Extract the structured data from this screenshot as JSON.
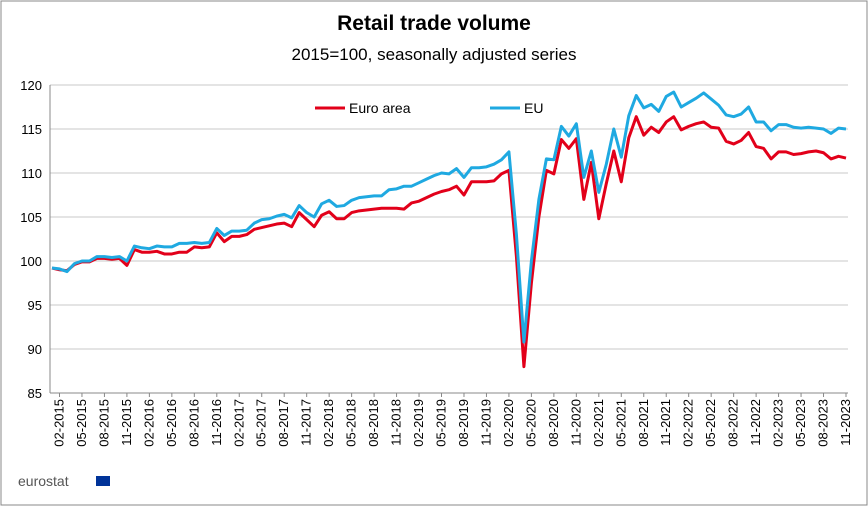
{
  "chart_data": {
    "type": "line",
    "title": "Retail trade volume",
    "subtitle": "2015=100, seasonally adjusted series",
    "source": "eurostat",
    "categories": [
      null,
      "02-2015",
      null,
      null,
      "05-2015",
      null,
      null,
      "08-2015",
      null,
      null,
      "11-2015",
      null,
      null,
      "02-2016",
      null,
      null,
      "05-2016",
      null,
      null,
      "08-2016",
      null,
      null,
      "11-2016",
      null,
      null,
      "02-2017",
      null,
      null,
      "05-2017",
      null,
      null,
      "08-2017",
      null,
      null,
      "11-2017",
      null,
      null,
      "02-2018",
      null,
      null,
      "05-2018",
      null,
      null,
      "08-2018",
      null,
      null,
      "11-2018",
      null,
      null,
      "02-2019",
      null,
      null,
      "05-2019",
      null,
      null,
      "08-2019",
      null,
      null,
      "11-2019",
      null,
      null,
      "02-2020",
      null,
      null,
      "05-2020",
      null,
      null,
      "08-2020",
      null,
      null,
      "11-2020",
      null,
      null,
      "02-2021",
      null,
      null,
      "05-2021",
      null,
      null,
      "08-2021",
      null,
      null,
      "11-2021",
      null,
      null,
      "02-2022",
      null,
      null,
      "05-2022",
      null,
      null,
      "08-2022",
      null,
      null,
      "11-2022",
      null,
      null,
      "02-2023",
      null,
      null,
      "05-2023",
      null,
      null,
      "08-2023",
      null,
      null,
      "11-2023"
    ],
    "series": [
      {
        "name": "Euro area",
        "color": "#e2001a",
        "values": [
          99.2,
          99.0,
          98.9,
          99.6,
          99.9,
          99.9,
          100.3,
          100.3,
          100.2,
          100.3,
          99.5,
          101.3,
          101.0,
          101.0,
          101.1,
          100.8,
          100.8,
          101.0,
          101.0,
          101.6,
          101.5,
          101.6,
          103.2,
          102.2,
          102.8,
          102.8,
          103.0,
          103.6,
          103.8,
          104.0,
          104.2,
          104.3,
          103.9,
          105.5,
          104.7,
          103.9,
          105.2,
          105.6,
          104.8,
          104.8,
          105.5,
          105.7,
          105.8,
          105.9,
          106.0,
          106.0,
          106.0,
          105.9,
          106.6,
          106.8,
          107.2,
          107.6,
          107.9,
          108.1,
          108.5,
          107.5,
          109.0,
          109.0,
          109.0,
          109.1,
          109.9,
          110.3,
          100.5,
          88.0,
          97.5,
          105.0,
          110.3,
          109.9,
          113.8,
          112.8,
          113.9,
          107.0,
          111.2,
          104.8,
          108.8,
          112.5,
          109.0,
          114.0,
          116.4,
          114.3,
          115.2,
          114.6,
          115.8,
          116.4,
          114.9,
          115.3,
          115.6,
          115.8,
          115.2,
          115.1,
          113.6,
          113.3,
          113.7,
          114.6,
          113.0,
          112.8,
          111.6,
          112.4,
          112.4,
          112.1,
          112.2,
          112.4,
          112.5,
          112.3,
          111.6,
          111.9,
          111.7
        ]
      },
      {
        "name": "EU",
        "color": "#1fa9e1",
        "values": [
          99.2,
          99.1,
          98.8,
          99.7,
          100.0,
          100.0,
          100.5,
          100.5,
          100.4,
          100.5,
          100.0,
          101.7,
          101.5,
          101.4,
          101.7,
          101.6,
          101.6,
          102.0,
          102.0,
          102.1,
          102.0,
          102.1,
          103.7,
          102.9,
          103.4,
          103.4,
          103.5,
          104.3,
          104.7,
          104.8,
          105.1,
          105.3,
          104.9,
          106.3,
          105.5,
          105.0,
          106.5,
          106.9,
          106.2,
          106.3,
          106.9,
          107.2,
          107.3,
          107.4,
          107.4,
          108.1,
          108.2,
          108.5,
          108.5,
          108.9,
          109.3,
          109.7,
          110.0,
          109.9,
          110.5,
          109.5,
          110.6,
          110.6,
          110.7,
          111.0,
          111.5,
          112.4,
          103.0,
          90.8,
          100.0,
          107.0,
          111.6,
          111.5,
          115.3,
          114.2,
          115.6,
          109.5,
          112.5,
          107.8,
          111.0,
          115.0,
          111.8,
          116.5,
          118.8,
          117.4,
          117.8,
          117.0,
          118.7,
          119.2,
          117.5,
          118.0,
          118.5,
          119.1,
          118.4,
          117.7,
          116.6,
          116.4,
          116.7,
          117.5,
          115.8,
          115.8,
          114.8,
          115.5,
          115.5,
          115.2,
          115.1,
          115.2,
          115.1,
          115.0,
          114.5,
          115.1,
          115.0
        ]
      }
    ],
    "ylim": [
      85,
      120
    ],
    "yticks": [
      85,
      90,
      95,
      100,
      105,
      110,
      115,
      120
    ],
    "grid": true
  }
}
